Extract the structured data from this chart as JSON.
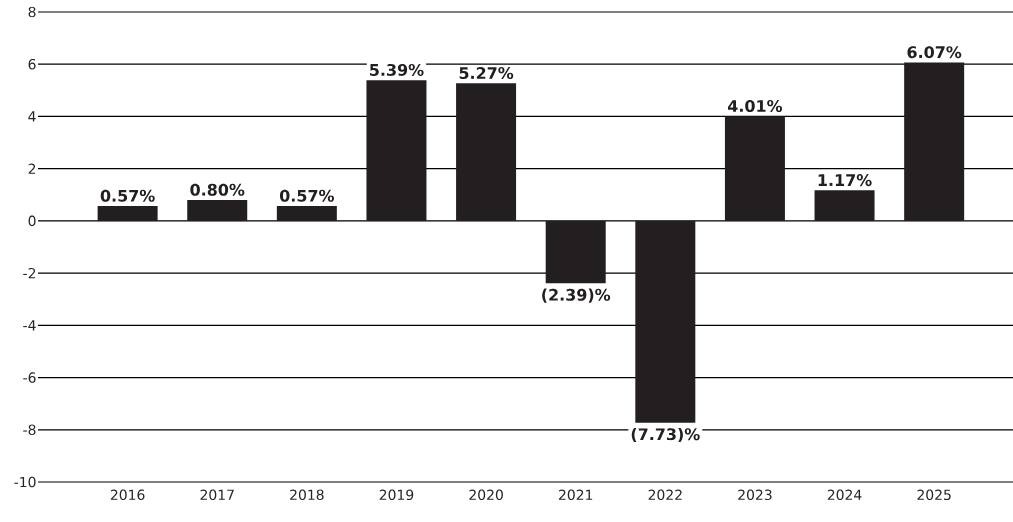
{
  "chart_data": {
    "type": "bar",
    "categories": [
      "2016",
      "2017",
      "2018",
      "2019",
      "2020",
      "2021",
      "2022",
      "2023",
      "2024",
      "2025"
    ],
    "values": [
      0.57,
      0.8,
      0.57,
      5.39,
      5.27,
      -2.39,
      -7.73,
      4.01,
      1.17,
      6.07
    ],
    "value_labels": [
      "0.57%",
      "0.80%",
      "0.57%",
      "5.39%",
      "5.27%",
      "(2.39)%",
      "(7.73)%",
      "4.01%",
      "1.17%",
      "6.07%"
    ],
    "color": "#231f20",
    "ylim": [
      -10,
      8
    ],
    "yticks": [
      -10,
      -8,
      -6,
      -4,
      -2,
      0,
      2,
      4,
      6,
      8
    ],
    "grid": "y"
  }
}
